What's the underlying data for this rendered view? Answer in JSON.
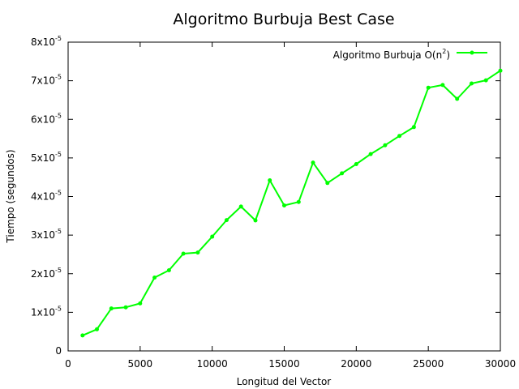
{
  "chart_data": {
    "type": "line",
    "title": "Algoritmo Burbuja Best Case",
    "xlabel": "Longitud del Vector",
    "ylabel": "Tiempo (segundos)",
    "xlim": [
      0,
      30000
    ],
    "ylim": [
      0,
      8e-05
    ],
    "grid": false,
    "legend_position": "top-right",
    "x_ticks": [
      "0",
      "5000",
      "10000",
      "15000",
      "20000",
      "25000",
      "30000"
    ],
    "y_ticks": [
      {
        "base": "0",
        "exp": ""
      },
      {
        "base": "1x10",
        "exp": "-5"
      },
      {
        "base": "2x10",
        "exp": "-5"
      },
      {
        "base": "3x10",
        "exp": "-5"
      },
      {
        "base": "4x10",
        "exp": "-5"
      },
      {
        "base": "5x10",
        "exp": "-5"
      },
      {
        "base": "6x10",
        "exp": "-5"
      },
      {
        "base": "7x10",
        "exp": "-5"
      },
      {
        "base": "8x10",
        "exp": "-5"
      }
    ],
    "series": [
      {
        "name": "Algoritmo Burbuja O(n",
        "name_sup": "2",
        "name_end": ")",
        "color": "#00ff00",
        "x": [
          1000,
          2000,
          3000,
          4000,
          5000,
          6000,
          7000,
          8000,
          9000,
          10000,
          11000,
          12000,
          13000,
          14000,
          15000,
          16000,
          17000,
          18000,
          19000,
          20000,
          21000,
          22000,
          23000,
          24000,
          25000,
          26000,
          27000,
          28000,
          29000,
          30000
        ],
        "y": [
          4e-06,
          5.6e-06,
          1.1e-05,
          1.13e-05,
          1.23e-05,
          1.9e-05,
          2.09e-05,
          2.52e-05,
          2.55e-05,
          2.96e-05,
          3.39e-05,
          3.74e-05,
          3.38e-05,
          4.42e-05,
          3.77e-05,
          3.86e-05,
          4.88e-05,
          4.35e-05,
          4.6e-05,
          4.84e-05,
          5.1e-05,
          5.33e-05,
          5.57e-05,
          5.8e-05,
          6.82e-05,
          6.89e-05,
          6.53e-05,
          6.93e-05,
          7.01e-05,
          7.26e-05
        ]
      }
    ]
  }
}
